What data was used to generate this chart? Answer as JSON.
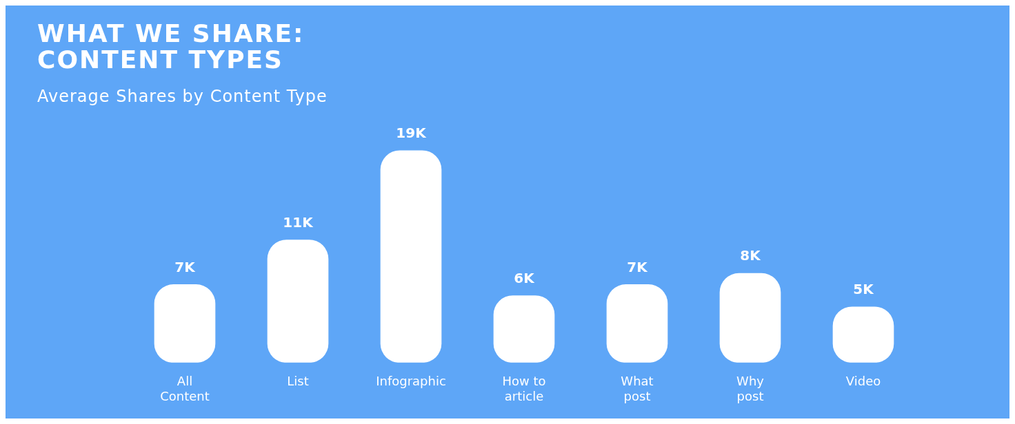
{
  "chart_data": {
    "type": "bar",
    "title": "WHAT WE SHARE: CONTENT TYPES",
    "subtitle": "Average Shares by Content Type",
    "categories": [
      "All Content",
      "List",
      "Infographic",
      "How to article",
      "What post",
      "Why post",
      "Video"
    ],
    "values": [
      7,
      11,
      19,
      6,
      7,
      8,
      5
    ],
    "value_labels": [
      "7K",
      "11K",
      "19K",
      "6K",
      "7K",
      "8K",
      "5K"
    ],
    "color": "#ffffff",
    "relative": false
  }
}
